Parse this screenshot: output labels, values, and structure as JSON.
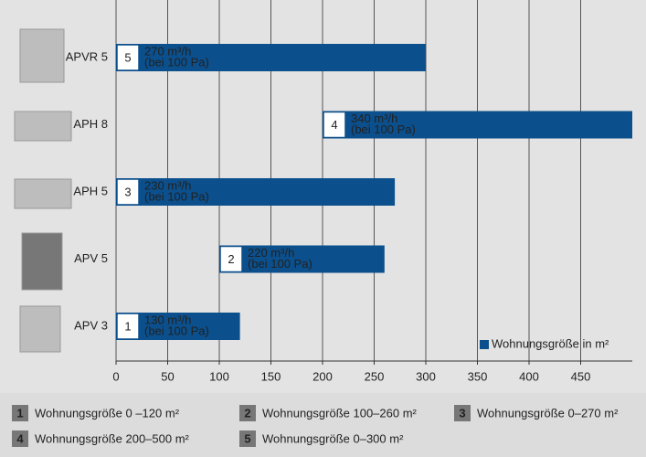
{
  "chart_data": {
    "type": "rangebar",
    "categories": [
      "APVR 5",
      "APH 8",
      "APH 5",
      "APV 5",
      "APV 3"
    ],
    "badges": [
      "5",
      "4",
      "3",
      "2",
      "1"
    ],
    "flow_labels": [
      "270 m³/h",
      "340 m³/h",
      "230 m³/h",
      "220 m³/h",
      "130 m³/h"
    ],
    "pressure_labels": [
      "(bei 100 Pa)",
      "(bei 100 Pa)",
      "(bei 100 Pa)",
      "(bei 100 Pa)",
      "(bei 100 Pa)"
    ],
    "series": [
      {
        "name": "Wohnungsgröße in m²",
        "color": "#0b4f8c",
        "starts": [
          0,
          200,
          0,
          100,
          0
        ],
        "values": [
          300,
          500,
          270,
          260,
          120
        ]
      }
    ],
    "xlim": [
      0,
      500
    ],
    "xticks": [
      0,
      50,
      100,
      150,
      200,
      250,
      300,
      350,
      400,
      450
    ],
    "grid": true,
    "legend": "lower right",
    "notes": [
      {
        "number": "1",
        "text": "Wohnungsgröße 0 –120 m²"
      },
      {
        "number": "2",
        "text": "Wohnungsgröße 100–260 m²"
      },
      {
        "number": "3",
        "text": "Wohnungsgröße 0–270 m²"
      },
      {
        "number": "4",
        "text": "Wohnungsgröße 200–500 m²"
      },
      {
        "number": "5",
        "text": "Wohnungsgröße 0–300 m²"
      }
    ]
  }
}
